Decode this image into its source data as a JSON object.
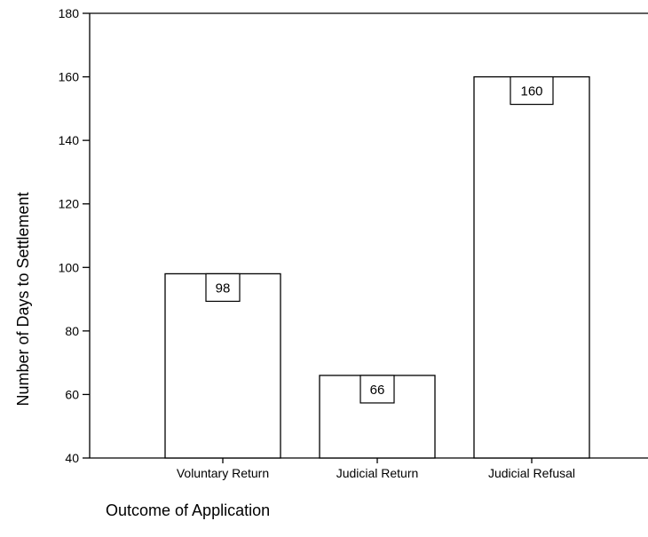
{
  "chart_data": {
    "type": "bar",
    "title": "",
    "xlabel": "Outcome of Application",
    "ylabel": "Number of Days to Settlement",
    "categories": [
      "Voluntary Return",
      "Judicial Return",
      "Judicial Refusal"
    ],
    "values": [
      98,
      66,
      160
    ],
    "data_labels": [
      "98",
      "66",
      "160"
    ],
    "ylim": [
      40,
      180
    ],
    "yticks": [
      40,
      60,
      80,
      100,
      120,
      140,
      160,
      180
    ],
    "grid": false,
    "legend": "none",
    "colors": {
      "bar_fill": "#ffffff",
      "bar_stroke": "#000000",
      "axis": "#000000"
    }
  }
}
